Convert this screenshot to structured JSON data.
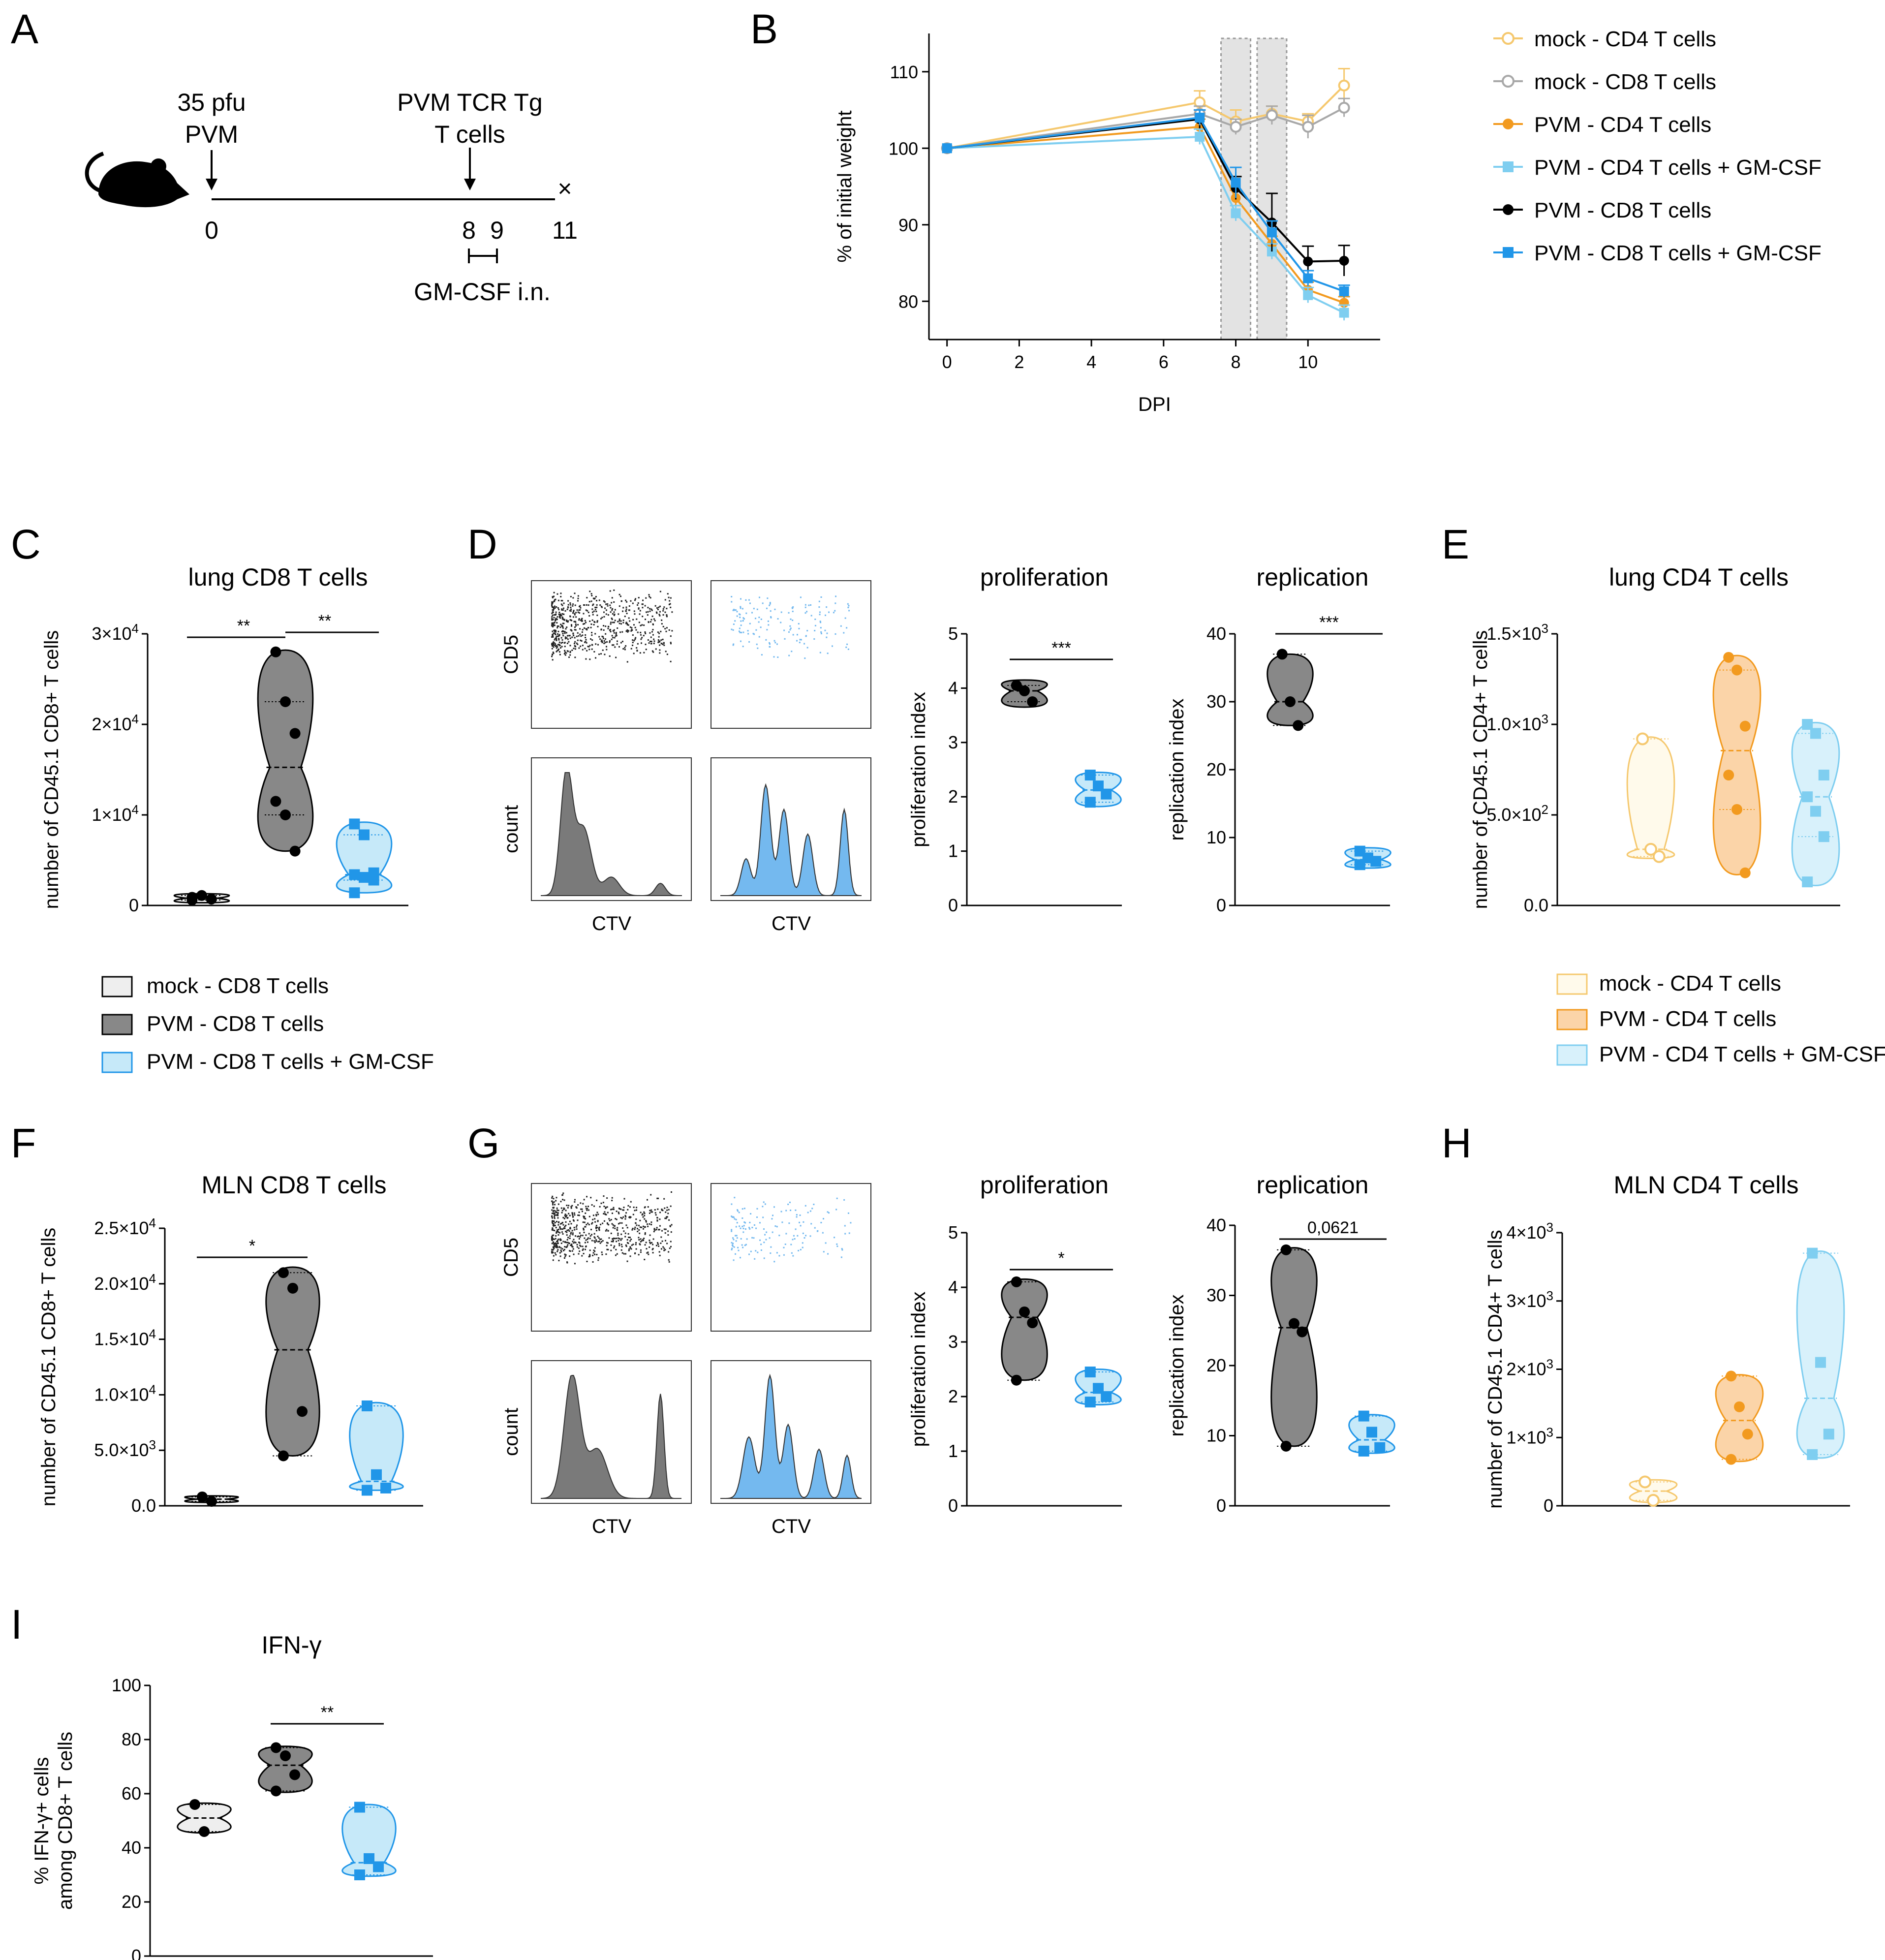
{
  "chart_data": [
    {
      "id": "A",
      "type": "timeline",
      "events": [
        "35 pfu",
        "PVM",
        "PVM TCR Tg",
        "T cells"
      ],
      "ticks": [
        "0",
        "8",
        "9",
        "11"
      ],
      "end_mark": "×",
      "treatment": "GM-CSF i.n."
    },
    {
      "id": "B",
      "type": "line",
      "xlabel": "DPI",
      "ylabel": "% of initial weight",
      "xlim": [
        -0.5,
        12
      ],
      "ylim": [
        75,
        115
      ],
      "xticks": [
        0,
        2,
        4,
        6,
        8,
        10
      ],
      "yticks": [
        80,
        90,
        100,
        110
      ],
      "shaded_days": [
        8,
        9
      ],
      "series": [
        {
          "name": "mock - CD4 T cells",
          "color": "#f5c86e",
          "marker": "circle-open",
          "x": [
            0,
            7,
            8,
            9,
            10,
            11
          ],
          "y": [
            100,
            106,
            103.5,
            104.5,
            103.5,
            108.2
          ],
          "err": [
            0,
            1.5,
            1.5,
            1,
            1,
            2.2
          ]
        },
        {
          "name": "mock - CD8 T cells",
          "color": "#a8a8a8",
          "marker": "circle-open",
          "x": [
            0,
            7,
            8,
            9,
            10,
            11
          ],
          "y": [
            100,
            104.5,
            102.8,
            104.3,
            102.8,
            105.3
          ],
          "err": [
            0,
            1,
            1,
            1.2,
            1.5,
            1.2
          ]
        },
        {
          "name": "PVM - CD4 T cells",
          "color": "#f29a1f",
          "marker": "circle",
          "x": [
            0,
            7,
            8,
            9,
            10,
            11
          ],
          "y": [
            100,
            102.8,
            93.5,
            87.5,
            81.5,
            79.8
          ],
          "err": [
            0,
            1,
            1,
            1,
            1,
            0.8
          ]
        },
        {
          "name": "PVM - CD4 T cells + GM-CSF",
          "color": "#7fcef0",
          "marker": "square",
          "x": [
            0,
            7,
            8,
            9,
            10,
            11
          ],
          "y": [
            100,
            101.5,
            91.5,
            86.5,
            80.8,
            78.5
          ],
          "err": [
            0,
            1,
            1,
            1,
            1,
            1
          ]
        },
        {
          "name": "PVM - CD8 T cells",
          "color": "#000000",
          "marker": "circle",
          "x": [
            0,
            7,
            8,
            9,
            10,
            11
          ],
          "y": [
            100,
            103.8,
            94.8,
            90.3,
            85.2,
            85.3
          ],
          "err": [
            0,
            1.2,
            1.5,
            3.8,
            2,
            2
          ]
        },
        {
          "name": "PVM - CD8 T cells + GM-CSF",
          "color": "#2196e8",
          "marker": "square",
          "x": [
            0,
            7,
            8,
            9,
            10,
            11
          ],
          "y": [
            100,
            104,
            95.5,
            89,
            83,
            81.3
          ],
          "err": [
            0,
            1,
            2,
            1.5,
            1,
            0.8
          ]
        }
      ]
    },
    {
      "id": "C",
      "type": "violin",
      "title": "lung CD8 T cells",
      "ylabel": "number of CD45.1 CD8+ T cells",
      "ylim": [
        0,
        30000
      ],
      "ytick_labels": [
        "0",
        "1×10",
        "2×10",
        "3×10"
      ],
      "ytick_values": [
        0,
        10000,
        20000,
        30000
      ],
      "ytick_exp": [
        "",
        "4",
        "4",
        "4"
      ],
      "groups": [
        {
          "name": "mock - CD8 T cells",
          "marker": "circle",
          "points": [
            900,
            1100,
            700,
            600
          ],
          "min": 300,
          "max": 1300
        },
        {
          "name": "PVM - CD8 T cells",
          "marker": "circle",
          "points": [
            28000,
            22500,
            19000,
            11500,
            10000,
            6000
          ],
          "min": 6000,
          "max": 28200
        },
        {
          "name": "PVM - CD8 T cells + GM-CSF",
          "marker": "square",
          "points": [
            9000,
            7800,
            3600,
            3400,
            3100,
            2800,
            1400
          ],
          "min": 1400,
          "max": 9200
        }
      ],
      "significance": [
        {
          "from": 0,
          "to": 1,
          "label": "**"
        },
        {
          "from": 1,
          "to": 2,
          "label": "**"
        }
      ]
    },
    {
      "id": "D-prolif",
      "type": "violin",
      "title": "proliferation",
      "ylabel": "proliferation index",
      "ylim": [
        0,
        5
      ],
      "ytick_labels": [
        "0",
        "1",
        "2",
        "3",
        "4",
        "5"
      ],
      "ytick_values": [
        0,
        1,
        2,
        3,
        4,
        5
      ],
      "groups": [
        {
          "name": "PVM - CD8 T cells",
          "marker": "circle",
          "points": [
            4.05,
            3.95,
            3.75
          ],
          "min": 3.65,
          "max": 4.15
        },
        {
          "name": "PVM - CD8 T cells + GM-CSF",
          "marker": "square",
          "points": [
            2.4,
            2.2,
            2.05,
            1.9
          ],
          "min": 1.82,
          "max": 2.45
        }
      ],
      "significance": [
        {
          "from": 0,
          "to": 1,
          "label": "***"
        }
      ]
    },
    {
      "id": "D-repl",
      "type": "violin",
      "title": "replication",
      "ylabel": "replication index",
      "ylim": [
        0,
        40
      ],
      "ytick_labels": [
        "0",
        "10",
        "20",
        "30",
        "40"
      ],
      "ytick_values": [
        0,
        10,
        20,
        30,
        40
      ],
      "groups": [
        {
          "name": "PVM - CD8 T cells",
          "marker": "circle",
          "points": [
            37,
            30,
            26.5
          ],
          "min": 26.5,
          "max": 37
        },
        {
          "name": "PVM - CD8 T cells + GM-CSF",
          "marker": "square",
          "points": [
            8,
            7,
            6.5,
            6
          ],
          "min": 5.5,
          "max": 8.5
        }
      ],
      "significance": [
        {
          "from": 0,
          "to": 1,
          "label": "***"
        }
      ]
    },
    {
      "id": "E",
      "type": "violin",
      "title": "lung CD4 T cells",
      "ylabel": "number of CD45.1 CD4+ T cells",
      "ylim": [
        0,
        1500
      ],
      "ytick_labels": [
        "0.0",
        "5.0×10",
        "1.0×10",
        "1.5×10"
      ],
      "ytick_values": [
        0,
        500,
        1000,
        1500
      ],
      "ytick_exp": [
        "",
        "2",
        "3",
        "3"
      ],
      "groups": [
        {
          "name": "mock - CD4 T cells",
          "marker": "circle-open",
          "points": [
            920,
            310,
            270
          ],
          "min": 260,
          "max": 930
        },
        {
          "name": "PVM - CD4 T cells",
          "marker": "circle",
          "points": [
            1370,
            1300,
            990,
            720,
            530,
            180
          ],
          "min": 170,
          "max": 1380
        },
        {
          "name": "PVM - CD4 T cells + GM-CSF",
          "marker": "square",
          "points": [
            1000,
            950,
            720,
            600,
            520,
            380,
            130
          ],
          "min": 110,
          "max": 1010
        }
      ]
    },
    {
      "id": "F",
      "type": "violin",
      "title": "MLN CD8 T cells",
      "ylabel": "number of CD45.1 CD8+ T cells",
      "ylim": [
        0,
        25000
      ],
      "ytick_labels": [
        "0.0",
        "5.0×10",
        "1.0×10",
        "1.5×10",
        "2.0×10",
        "2.5×10"
      ],
      "ytick_values": [
        0,
        5000,
        10000,
        15000,
        20000,
        25000
      ],
      "ytick_exp": [
        "",
        "3",
        "4",
        "4",
        "4",
        "4"
      ],
      "groups": [
        {
          "name": "mock - CD8 T cells",
          "marker": "circle",
          "points": [
            800,
            400
          ],
          "min": 300,
          "max": 900
        },
        {
          "name": "PVM - CD8 T cells",
          "marker": "circle",
          "points": [
            21000,
            19600,
            8500,
            4500
          ],
          "min": 4500,
          "max": 21500
        },
        {
          "name": "PVM - CD8 T cells + GM-CSF",
          "marker": "square",
          "points": [
            9000,
            2800,
            1600,
            1400
          ],
          "min": 1400,
          "max": 9300
        }
      ],
      "significance": [
        {
          "from": 0,
          "to": 1,
          "label": "*"
        }
      ]
    },
    {
      "id": "G-prolif",
      "type": "violin",
      "title": "proliferation",
      "ylabel": "proliferation index",
      "ylim": [
        0,
        5
      ],
      "ytick_labels": [
        "0",
        "1",
        "2",
        "3",
        "4",
        "5"
      ],
      "ytick_values": [
        0,
        1,
        2,
        3,
        4,
        5
      ],
      "groups": [
        {
          "name": "PVM - CD8 T cells",
          "marker": "circle",
          "points": [
            4.1,
            3.55,
            3.35,
            2.3
          ],
          "min": 2.3,
          "max": 4.15
        },
        {
          "name": "PVM - CD8 T cells + GM-CSF",
          "marker": "square",
          "points": [
            2.45,
            2.15,
            2.0,
            1.9
          ],
          "min": 1.85,
          "max": 2.5
        }
      ],
      "significance": [
        {
          "from": 0,
          "to": 1,
          "label": "*"
        }
      ]
    },
    {
      "id": "G-repl",
      "type": "violin",
      "title": "replication",
      "ylabel": "replication index",
      "ylim": [
        0,
        40
      ],
      "ytick_labels": [
        "0",
        "10",
        "20",
        "30",
        "40"
      ],
      "ytick_values": [
        0,
        10,
        20,
        30,
        40
      ],
      "groups": [
        {
          "name": "PVM - CD8 T cells",
          "marker": "circle",
          "points": [
            36.5,
            26,
            24.8,
            8.5
          ],
          "min": 8.5,
          "max": 36.8
        },
        {
          "name": "PVM - CD8 T cells + GM-CSF",
          "marker": "square",
          "points": [
            12.8,
            10.5,
            8.3,
            7.8
          ],
          "min": 7.5,
          "max": 13
        }
      ],
      "significance": [
        {
          "from": 0,
          "to": 1,
          "label": "0,0621"
        }
      ]
    },
    {
      "id": "H",
      "type": "violin",
      "title": "MLN CD4 T cells",
      "ylabel": "number of CD45.1 CD4+ T cells",
      "ylim": [
        0,
        4000
      ],
      "ytick_labels": [
        "0",
        "1×10",
        "2×10",
        "3×10",
        "4×10"
      ],
      "ytick_values": [
        0,
        1000,
        2000,
        3000,
        4000
      ],
      "ytick_exp": [
        "",
        "3",
        "3",
        "3",
        "3"
      ],
      "groups": [
        {
          "name": "mock - CD4 T cells",
          "marker": "circle-open",
          "points": [
            350,
            80
          ],
          "min": 50,
          "max": 380
        },
        {
          "name": "PVM - CD4 T cells",
          "marker": "circle",
          "points": [
            1900,
            1450,
            1050,
            680
          ],
          "min": 650,
          "max": 1920
        },
        {
          "name": "PVM - CD4 T cells + GM-CSF",
          "marker": "square",
          "points": [
            3700,
            2100,
            1050,
            750
          ],
          "min": 700,
          "max": 3730
        }
      ]
    },
    {
      "id": "I",
      "type": "violin",
      "title": "IFN-γ",
      "ylabel": [
        "% IFN-γ+ cells",
        "among CD8+ T cells"
      ],
      "ylim": [
        0,
        100
      ],
      "ytick_labels": [
        "0",
        "20",
        "40",
        "60",
        "80",
        "100"
      ],
      "ytick_values": [
        0,
        20,
        40,
        60,
        80,
        100
      ],
      "groups": [
        {
          "name": "mock - CD8 T cells",
          "marker": "circle",
          "points": [
            56,
            46
          ],
          "min": 45.5,
          "max": 56.5
        },
        {
          "name": "PVM - CD8 T cells",
          "marker": "circle",
          "points": [
            77,
            74,
            67,
            61
          ],
          "min": 60.5,
          "max": 77.5
        },
        {
          "name": "PVM - CD8 T cells + GM-CSF",
          "marker": "square",
          "points": [
            55,
            36,
            33,
            30
          ],
          "min": 29.5,
          "max": 56
        }
      ],
      "significance": [
        {
          "from": 1,
          "to": 2,
          "label": "**"
        }
      ]
    },
    {
      "id": "flow",
      "type": "flow-cytometry",
      "ylabel_top": "CD5",
      "ylabel_bottom": "count",
      "xlabel": "CTV"
    }
  ],
  "panel_letters": [
    "A",
    "B",
    "C",
    "D",
    "E",
    "F",
    "G",
    "H",
    "I"
  ],
  "legend_cd8": [
    "mock - CD8 T cells",
    "PVM - CD8 T cells",
    "PVM - CD8 T cells + GM-CSF"
  ],
  "legend_cd4": [
    "mock - CD4 T cells",
    "PVM - CD4 T cells",
    "PVM - CD4 T cells + GM-CSF"
  ],
  "colors": {
    "mock_cd8_fill": "#eeeeee",
    "pvm_cd8_fill": "#888888",
    "gm_cd8_fill": "#c6e9f9",
    "gm_cd8_mark": "#2196e8",
    "mock_cd4_fill": "#fffaeb",
    "mock_cd4_line": "#f5c86e",
    "pvm_cd4_fill": "#fbd4a8",
    "pvm_cd4_line": "#f29a1f",
    "gm_cd4_fill": "#d8f1fb",
    "gm_cd4_line": "#7fcef0",
    "flow_gray": "#7a7a7a",
    "flow_blue": "#74b9ef"
  }
}
